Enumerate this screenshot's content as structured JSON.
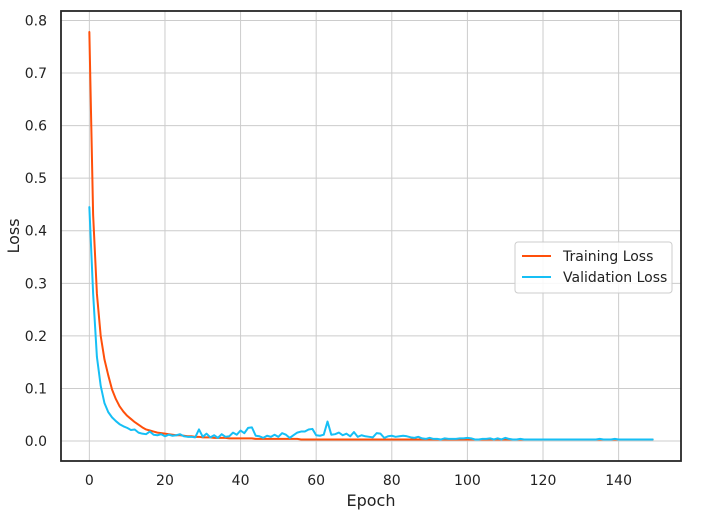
{
  "chart_data": {
    "type": "line",
    "title": "",
    "xlabel": "Epoch",
    "ylabel": "Loss",
    "xlim": [
      -7.5,
      156.5
    ],
    "ylim": [
      -0.038,
      0.818
    ],
    "xticks": [
      0,
      20,
      40,
      60,
      80,
      100,
      120,
      140
    ],
    "yticks": [
      0.0,
      0.1,
      0.2,
      0.3,
      0.4,
      0.5,
      0.6,
      0.7,
      0.8
    ],
    "xtick_labels": [
      "0",
      "20",
      "40",
      "60",
      "80",
      "100",
      "120",
      "140"
    ],
    "ytick_labels": [
      "0.0",
      "0.1",
      "0.2",
      "0.3",
      "0.4",
      "0.5",
      "0.6",
      "0.7",
      "0.8"
    ],
    "grid": true,
    "legend_position": "center-right",
    "x": [
      0,
      1,
      2,
      3,
      4,
      5,
      6,
      7,
      8,
      9,
      10,
      11,
      12,
      13,
      14,
      15,
      16,
      17,
      18,
      19,
      20,
      21,
      22,
      23,
      24,
      25,
      26,
      27,
      28,
      29,
      30,
      31,
      32,
      33,
      34,
      35,
      36,
      37,
      38,
      39,
      40,
      41,
      42,
      43,
      44,
      45,
      46,
      47,
      48,
      49,
      50,
      51,
      52,
      53,
      54,
      55,
      56,
      57,
      58,
      59,
      60,
      61,
      62,
      63,
      64,
      65,
      66,
      67,
      68,
      69,
      70,
      71,
      72,
      73,
      74,
      75,
      76,
      77,
      78,
      79,
      80,
      81,
      82,
      83,
      84,
      85,
      86,
      87,
      88,
      89,
      90,
      91,
      92,
      93,
      94,
      95,
      96,
      97,
      98,
      99,
      100,
      101,
      102,
      103,
      104,
      105,
      106,
      107,
      108,
      109,
      110,
      111,
      112,
      113,
      114,
      115,
      116,
      117,
      118,
      119,
      120,
      121,
      122,
      123,
      124,
      125,
      126,
      127,
      128,
      129,
      130,
      131,
      132,
      133,
      134,
      135,
      136,
      137,
      138,
      139,
      140,
      141,
      142,
      143,
      144,
      145,
      146,
      147,
      148,
      149
    ],
    "series": [
      {
        "name": "Training Loss",
        "color": "#ff4f0a",
        "values": [
          0.778,
          0.43,
          0.28,
          0.2,
          0.155,
          0.125,
          0.098,
          0.08,
          0.066,
          0.056,
          0.048,
          0.042,
          0.036,
          0.031,
          0.026,
          0.022,
          0.02,
          0.018,
          0.016,
          0.015,
          0.014,
          0.013,
          0.012,
          0.011,
          0.011,
          0.01,
          0.009,
          0.009,
          0.008,
          0.008,
          0.007,
          0.007,
          0.007,
          0.006,
          0.006,
          0.006,
          0.006,
          0.005,
          0.005,
          0.005,
          0.005,
          0.005,
          0.005,
          0.005,
          0.004,
          0.004,
          0.004,
          0.004,
          0.004,
          0.004,
          0.004,
          0.004,
          0.004,
          0.004,
          0.004,
          0.004,
          0.003,
          0.003,
          0.003,
          0.003,
          0.003,
          0.003,
          0.003,
          0.003,
          0.003,
          0.003,
          0.003,
          0.003,
          0.003,
          0.003,
          0.003,
          0.003,
          0.003,
          0.003,
          0.003,
          0.003,
          0.003,
          0.003,
          0.003,
          0.003,
          0.003,
          0.003,
          0.003,
          0.003,
          0.003,
          0.003,
          0.003,
          0.003,
          0.003,
          0.003,
          0.003,
          0.003,
          0.003,
          0.003,
          0.003,
          0.003,
          0.003,
          0.003,
          0.003,
          0.003,
          0.003,
          0.003,
          0.003,
          0.003,
          0.003,
          0.003,
          0.003,
          0.003,
          0.003,
          0.003,
          0.003,
          0.003,
          0.003,
          0.003,
          0.003,
          0.003,
          0.003,
          0.003,
          0.003,
          0.003,
          0.003,
          0.003,
          0.003,
          0.003,
          0.003,
          0.003,
          0.003,
          0.003,
          0.003,
          0.003,
          0.003,
          0.003,
          0.003,
          0.003,
          0.003,
          0.003,
          0.003,
          0.003,
          0.003,
          0.003,
          0.003,
          0.003,
          0.003,
          0.003,
          0.003,
          0.003,
          0.003,
          0.003,
          0.003,
          0.003
        ]
      },
      {
        "name": "Validation Loss",
        "color": "#16bff5",
        "values": [
          0.445,
          0.28,
          0.16,
          0.105,
          0.072,
          0.055,
          0.045,
          0.038,
          0.032,
          0.028,
          0.025,
          0.021,
          0.022,
          0.016,
          0.014,
          0.013,
          0.018,
          0.012,
          0.011,
          0.013,
          0.009,
          0.012,
          0.01,
          0.011,
          0.013,
          0.009,
          0.008,
          0.008,
          0.007,
          0.022,
          0.008,
          0.014,
          0.007,
          0.011,
          0.006,
          0.013,
          0.008,
          0.009,
          0.016,
          0.012,
          0.02,
          0.015,
          0.025,
          0.026,
          0.01,
          0.009,
          0.006,
          0.01,
          0.008,
          0.012,
          0.008,
          0.015,
          0.012,
          0.006,
          0.011,
          0.016,
          0.018,
          0.018,
          0.022,
          0.023,
          0.011,
          0.01,
          0.012,
          0.037,
          0.012,
          0.013,
          0.016,
          0.011,
          0.014,
          0.009,
          0.017,
          0.008,
          0.011,
          0.009,
          0.008,
          0.007,
          0.015,
          0.014,
          0.006,
          0.009,
          0.01,
          0.008,
          0.009,
          0.01,
          0.009,
          0.007,
          0.006,
          0.008,
          0.005,
          0.004,
          0.006,
          0.004,
          0.004,
          0.003,
          0.005,
          0.004,
          0.004,
          0.004,
          0.005,
          0.005,
          0.006,
          0.005,
          0.003,
          0.003,
          0.004,
          0.004,
          0.005,
          0.003,
          0.005,
          0.003,
          0.006,
          0.004,
          0.003,
          0.003,
          0.004,
          0.003,
          0.003,
          0.003,
          0.003,
          0.003,
          0.003,
          0.003,
          0.003,
          0.003,
          0.003,
          0.003,
          0.003,
          0.003,
          0.003,
          0.003,
          0.003,
          0.003,
          0.003,
          0.003,
          0.003,
          0.004,
          0.003,
          0.003,
          0.003,
          0.004,
          0.003,
          0.003,
          0.003,
          0.003,
          0.003,
          0.003,
          0.003,
          0.003,
          0.003,
          0.003
        ]
      }
    ]
  }
}
